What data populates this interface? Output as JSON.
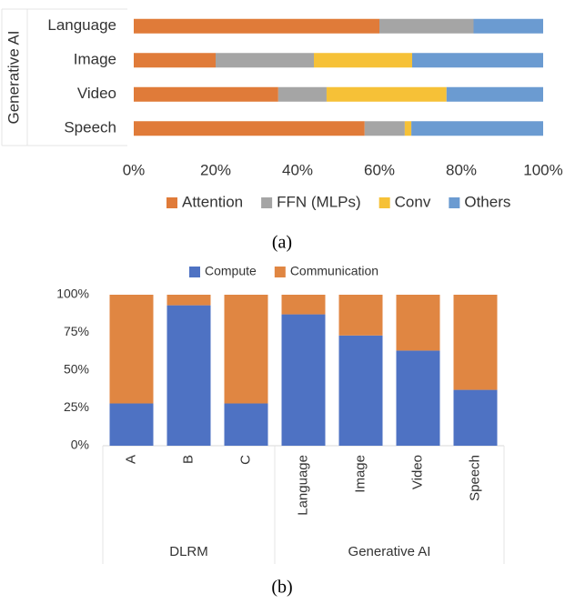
{
  "chart_data": [
    {
      "type": "bar",
      "orientation": "horizontal",
      "stacked": true,
      "caption": "(a)",
      "ylabel": "Generative AI",
      "categories": [
        "Language",
        "Image",
        "Video",
        "Speech"
      ],
      "series": [
        {
          "name": "Attention",
          "color": "#e07b39",
          "values": [
            60,
            20,
            35.3,
            56.4
          ]
        },
        {
          "name": "FFN (MLPs)",
          "color": "#a5a5a5",
          "values": [
            23,
            24,
            11.8,
            9.8
          ]
        },
        {
          "name": "Conv",
          "color": "#f6c137",
          "values": [
            0,
            24,
            29.3,
            1.6
          ]
        },
        {
          "name": "Others",
          "color": "#6b9bd1",
          "values": [
            17,
            32,
            23.6,
            32.2
          ]
        }
      ],
      "xlim": [
        0,
        100
      ],
      "xticks": [
        {
          "value": 0,
          "label": "0%"
        },
        {
          "value": 20,
          "label": "20%"
        },
        {
          "value": 40,
          "label": "40%"
        },
        {
          "value": 60,
          "label": "60%"
        },
        {
          "value": 80,
          "label": "80%"
        },
        {
          "value": 100,
          "label": "100%"
        }
      ],
      "legend": "bottom"
    },
    {
      "type": "bar",
      "orientation": "vertical",
      "stacked": true,
      "caption": "(b)",
      "categories": [
        "A",
        "B",
        "C",
        "Language",
        "Image",
        "Video",
        "Speech"
      ],
      "groups": [
        {
          "name": "DLRM",
          "size": 3
        },
        {
          "name": "Generative AI",
          "size": 4
        }
      ],
      "series": [
        {
          "name": "Compute",
          "color": "#4e72c3",
          "values": [
            28,
            93,
            28,
            87,
            73,
            63,
            37
          ]
        },
        {
          "name": "Communication",
          "color": "#e08642",
          "values": [
            72,
            7,
            72,
            13,
            27,
            37,
            63
          ]
        }
      ],
      "ylim": [
        0,
        100
      ],
      "yticks": [
        {
          "value": 0,
          "label": "0%"
        },
        {
          "value": 25,
          "label": "25%"
        },
        {
          "value": 50,
          "label": "50%"
        },
        {
          "value": 75,
          "label": "75%"
        },
        {
          "value": 100,
          "label": "100%"
        }
      ],
      "legend": "top"
    }
  ]
}
